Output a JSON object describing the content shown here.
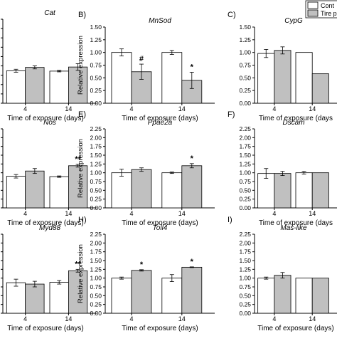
{
  "legend": {
    "items": [
      {
        "label": "Cont",
        "color": "#ffffff"
      },
      {
        "label": "Tire p",
        "color": "#c0c0c0"
      }
    ]
  },
  "colors": {
    "control": "#ffffff",
    "treated": "#c0c0c0",
    "axis": "#000000"
  },
  "chart_data": [
    {
      "panel_label": "",
      "title": "Cat",
      "type": "bar",
      "categories": [
        "4",
        "14"
      ],
      "xlabel": "Time of exposure (days)",
      "ylabel": "",
      "ylim": [
        0,
        2.25
      ],
      "ytick_labels": [],
      "series": [
        {
          "values": [
            0.87,
            0.86
          ],
          "errors": [
            0.04,
            0.02
          ]
        },
        {
          "values": [
            0.96,
            0.97
          ],
          "errors": [
            0.04,
            0.09
          ]
        }
      ],
      "annotations": []
    },
    {
      "panel_label": "B)",
      "title": "MnSod",
      "type": "bar",
      "categories": [
        "4",
        "14"
      ],
      "xlabel": "Time of exposure (days)",
      "ylabel": "Relative expression",
      "ylim": [
        0,
        1.5
      ],
      "ytick_labels": [
        "0.00",
        "0.25",
        "0.50",
        "0.75",
        "1.00",
        "1.25",
        "1.50"
      ],
      "series": [
        {
          "values": [
            1.0,
            1.0
          ],
          "errors": [
            0.07,
            0.04
          ]
        },
        {
          "values": [
            0.62,
            0.45
          ],
          "errors": [
            0.15,
            0.16
          ]
        }
      ],
      "annotations": [
        {
          "category": "4",
          "text": "#"
        },
        {
          "category": "14",
          "text": "*"
        }
      ]
    },
    {
      "panel_label": "C)",
      "title": "CypG",
      "type": "bar",
      "categories": [
        "4",
        "14"
      ],
      "xlabel": "Time of exposure (days",
      "ylabel": "",
      "ylim": [
        0,
        1.5
      ],
      "ytick_labels": [
        "0.00",
        "0.25",
        "0.50",
        "0.75",
        "1.00",
        "1.25",
        "1.50"
      ],
      "series": [
        {
          "values": [
            0.98,
            1.0
          ],
          "errors": [
            0.08,
            0.0
          ]
        },
        {
          "values": [
            1.04,
            0.58
          ],
          "errors": [
            0.07,
            0.0
          ]
        }
      ],
      "annotations": []
    },
    {
      "panel_label": "",
      "title": "Nos",
      "type": "bar",
      "categories": [
        "4",
        "14"
      ],
      "xlabel": "Time of exposure (days)",
      "ylabel": "",
      "ylim": [
        0,
        2.25
      ],
      "ytick_labels": [],
      "series": [
        {
          "values": [
            0.9,
            0.89
          ],
          "errors": [
            0.05,
            0.02
          ]
        },
        {
          "values": [
            1.05,
            1.2
          ],
          "errors": [
            0.07,
            0.04
          ]
        }
      ],
      "annotations": [
        {
          "category": "14",
          "text": "**"
        }
      ]
    },
    {
      "panel_label": "E)",
      "title": "Ppae2a",
      "type": "bar",
      "categories": [
        "4",
        "14"
      ],
      "xlabel": "Time of exposure (days)",
      "ylabel": "Relative expression",
      "ylim": [
        0,
        2.25
      ],
      "ytick_labels": [
        "0.00",
        "0.25",
        "0.50",
        "0.75",
        "1.00",
        "1.25",
        "1.50",
        "1.75",
        "2.00",
        "2.25"
      ],
      "series": [
        {
          "values": [
            1.0,
            1.0
          ],
          "errors": [
            0.1,
            0.02
          ]
        },
        {
          "values": [
            1.09,
            1.2
          ],
          "errors": [
            0.05,
            0.06
          ]
        }
      ],
      "annotations": [
        {
          "category": "14",
          "text": "*"
        }
      ]
    },
    {
      "panel_label": "F)",
      "title": "Dscam",
      "type": "bar",
      "categories": [
        "4",
        "14"
      ],
      "xlabel": "Time of exposure (days",
      "ylabel": "",
      "ylim": [
        0,
        2.25
      ],
      "ytick_labels": [
        "0.00",
        "0.25",
        "0.50",
        "0.75",
        "1.00",
        "1.25",
        "1.50",
        "1.75",
        "2.00",
        "2.25"
      ],
      "series": [
        {
          "values": [
            0.98,
            1.0
          ],
          "errors": [
            0.14,
            0.04
          ]
        },
        {
          "values": [
            0.98,
            1.0
          ],
          "errors": [
            0.06,
            0.0
          ]
        }
      ],
      "annotations": []
    },
    {
      "panel_label": "",
      "title": "Myd88",
      "type": "bar",
      "categories": [
        "4",
        "14"
      ],
      "xlabel": "Time of exposure (days)",
      "ylabel": "",
      "ylim": [
        0,
        2.25
      ],
      "ytick_labels": [],
      "series": [
        {
          "values": [
            0.87,
            0.88
          ],
          "errors": [
            0.1,
            0.05
          ]
        },
        {
          "values": [
            0.83,
            1.21
          ],
          "errors": [
            0.08,
            0.04
          ]
        }
      ],
      "annotations": [
        {
          "category": "14",
          "text": "**"
        }
      ]
    },
    {
      "panel_label": "H)",
      "title": "Toll4",
      "type": "bar",
      "categories": [
        "4",
        "14"
      ],
      "xlabel": "Time of exposure (days)",
      "ylabel": "Relative expression",
      "ylim": [
        0,
        2.25
      ],
      "ytick_labels": [
        "0.00",
        "0.25",
        "0.50",
        "0.75",
        "1.00",
        "1.25",
        "1.50",
        "1.75",
        "2.00",
        "2.25"
      ],
      "series": [
        {
          "values": [
            1.0,
            1.0
          ],
          "errors": [
            0.03,
            0.1
          ]
        },
        {
          "values": [
            1.22,
            1.31
          ],
          "errors": [
            0.02,
            0.01
          ]
        }
      ],
      "annotations": [
        {
          "category": "4",
          "text": "*"
        },
        {
          "category": "14",
          "text": "*"
        }
      ]
    },
    {
      "panel_label": "I)",
      "title": "Mas-like",
      "type": "bar",
      "categories": [
        "4",
        "14"
      ],
      "xlabel": "Time of exposure (days)",
      "ylabel": "",
      "ylim": [
        0,
        2.25
      ],
      "ytick_labels": [
        "0.00",
        "0.25",
        "0.50",
        "0.75",
        "1.00",
        "1.25",
        "1.50",
        "1.75",
        "2.00",
        "2.25"
      ],
      "series": [
        {
          "values": [
            1.0,
            1.0
          ],
          "errors": [
            0.03,
            0.0
          ]
        },
        {
          "values": [
            1.08,
            1.0
          ],
          "errors": [
            0.08,
            0.0
          ]
        }
      ],
      "annotations": []
    }
  ]
}
